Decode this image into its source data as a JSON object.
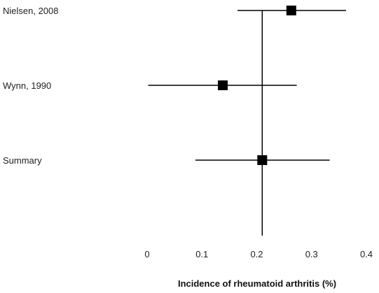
{
  "chart_data": {
    "type": "forest",
    "title": "",
    "xlabel": "Incidence of rheumatoid arthritis (%)",
    "ylabel": "",
    "xlim": [
      0,
      0.4
    ],
    "x_ticks": [
      "0",
      "0.1",
      "0.2",
      "0.3",
      "0.4"
    ],
    "x_tick_values": [
      0,
      0.1,
      0.2,
      0.3,
      0.4
    ],
    "reference_line": 0.21,
    "grid": false,
    "studies": [
      {
        "label": "Nielsen, 2008",
        "estimate": 0.263,
        "lower": 0.165,
        "upper": 0.363
      },
      {
        "label": "Wynn, 1990",
        "estimate": 0.138,
        "lower": 0.002,
        "upper": 0.273
      },
      {
        "label": "Summary",
        "estimate": 0.21,
        "lower": 0.088,
        "upper": 0.333
      }
    ],
    "colors": {
      "marker": "#000000",
      "line": "#000000",
      "text": "#222222"
    }
  }
}
